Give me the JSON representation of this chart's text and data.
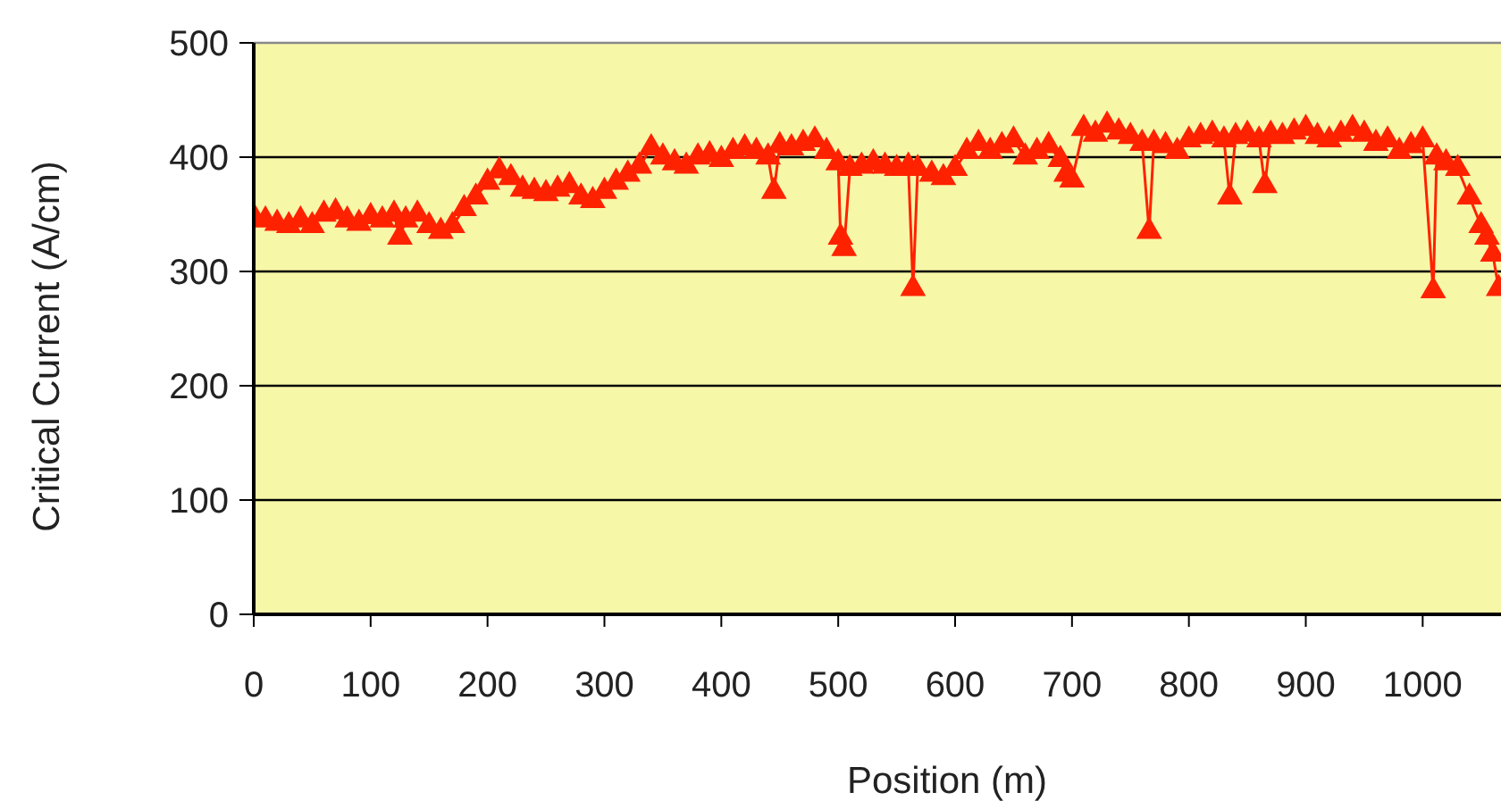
{
  "chart_data": {
    "type": "line",
    "xlabel": "Position (m)",
    "ylabel": "Critical Current  (A/cm)",
    "xlim": [
      0,
      1067
    ],
    "ylim": [
      0,
      500
    ],
    "xticks": [
      0,
      100,
      200,
      300,
      400,
      500,
      600,
      700,
      800,
      900,
      1000
    ],
    "yticks": [
      0,
      100,
      200,
      300,
      400,
      500
    ],
    "grid": "y",
    "marker": "triangle",
    "line_style": "solid",
    "x": [
      0,
      10,
      20,
      30,
      40,
      50,
      60,
      70,
      80,
      90,
      100,
      110,
      120,
      125,
      130,
      140,
      150,
      160,
      170,
      180,
      190,
      200,
      210,
      220,
      230,
      240,
      250,
      260,
      270,
      280,
      290,
      300,
      310,
      320,
      330,
      340,
      350,
      360,
      370,
      380,
      390,
      400,
      410,
      420,
      430,
      440,
      445,
      450,
      460,
      470,
      480,
      490,
      500,
      502,
      505,
      510,
      520,
      530,
      540,
      550,
      560,
      564,
      568,
      580,
      590,
      600,
      610,
      620,
      630,
      640,
      650,
      660,
      670,
      680,
      690,
      695,
      700,
      710,
      720,
      730,
      740,
      750,
      760,
      766,
      770,
      780,
      790,
      800,
      810,
      820,
      830,
      835,
      840,
      850,
      860,
      865,
      870,
      880,
      890,
      900,
      910,
      920,
      930,
      940,
      950,
      960,
      970,
      980,
      990,
      1000,
      1009,
      1012,
      1020,
      1030,
      1040,
      1050,
      1055,
      1060,
      1065
    ],
    "series": [
      {
        "color": "#ff2200",
        "values": [
          348,
          345,
          342,
          340,
          345,
          340,
          350,
          352,
          345,
          342,
          348,
          345,
          350,
          330,
          345,
          350,
          340,
          335,
          340,
          355,
          365,
          378,
          388,
          382,
          372,
          370,
          368,
          372,
          375,
          365,
          362,
          370,
          378,
          385,
          392,
          408,
          400,
          395,
          392,
          400,
          402,
          398,
          405,
          408,
          405,
          400,
          370,
          410,
          408,
          412,
          415,
          405,
          395,
          330,
          320,
          390,
          392,
          395,
          392,
          390,
          392,
          285,
          390,
          385,
          382,
          390,
          405,
          412,
          405,
          410,
          415,
          400,
          405,
          410,
          398,
          385,
          380,
          425,
          420,
          428,
          422,
          418,
          412,
          335,
          412,
          410,
          405,
          415,
          418,
          420,
          415,
          365,
          418,
          420,
          415,
          375,
          420,
          418,
          422,
          425,
          418,
          415,
          420,
          425,
          420,
          412,
          415,
          405,
          410,
          415,
          283,
          400,
          395,
          390,
          365,
          340,
          330,
          315,
          285
        ]
      }
    ]
  }
}
